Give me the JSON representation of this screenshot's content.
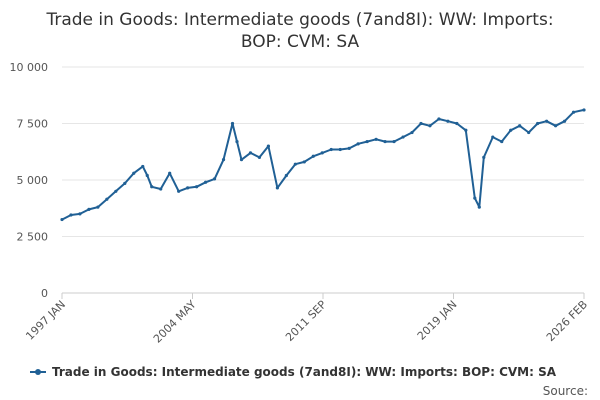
{
  "chart_data": {
    "type": "line",
    "title": [
      "Trade in Goods: Intermediate goods (7and8I): WW: Imports:",
      "BOP: CVM: SA"
    ],
    "x_ticks": [
      "1997 JAN",
      "2004 MAY",
      "2011 SEP",
      "2019 JAN",
      "2026 FEB"
    ],
    "y_ticks": [
      "0",
      "2 500",
      "5 000",
      "7 500",
      "10 000"
    ],
    "ylim": [
      0,
      10000
    ],
    "xlim": [
      "1997-01",
      "2026-02"
    ],
    "grid": true,
    "legend_position": "bottom",
    "series": [
      {
        "name": "Trade in Goods: Intermediate goods (7and8I): WW: Imports: BOP: CVM: SA",
        "color": "#206095",
        "x": [
          "1997-01",
          "1997-07",
          "1998-01",
          "1998-07",
          "1999-01",
          "1999-07",
          "2000-01",
          "2000-07",
          "2001-01",
          "2001-07",
          "2001-10",
          "2002-01",
          "2002-07",
          "2003-01",
          "2003-07",
          "2004-01",
          "2004-07",
          "2005-01",
          "2005-07",
          "2006-01",
          "2006-07",
          "2006-10",
          "2007-01",
          "2007-07",
          "2008-01",
          "2008-07",
          "2009-01",
          "2009-07",
          "2010-01",
          "2010-07",
          "2011-01",
          "2011-07",
          "2012-01",
          "2012-07",
          "2013-01",
          "2013-07",
          "2014-01",
          "2014-07",
          "2015-01",
          "2015-07",
          "2016-01",
          "2016-07",
          "2017-01",
          "2017-07",
          "2018-01",
          "2018-07",
          "2019-01",
          "2019-07",
          "2020-01",
          "2020-04",
          "2020-07",
          "2021-01",
          "2021-07",
          "2022-01",
          "2022-07",
          "2023-01",
          "2023-07",
          "2024-01",
          "2024-07",
          "2025-01",
          "2025-07",
          "2026-02"
        ],
        "values": [
          3250,
          3450,
          3500,
          3700,
          3800,
          4150,
          4500,
          4850,
          5300,
          5600,
          5200,
          4700,
          4600,
          5300,
          4500,
          4650,
          4700,
          4900,
          5050,
          5900,
          7500,
          6700,
          5900,
          6200,
          6000,
          6500,
          4650,
          5200,
          5700,
          5800,
          6050,
          6200,
          6350,
          6350,
          6400,
          6600,
          6700,
          6800,
          6700,
          6700,
          6900,
          7100,
          7500,
          7400,
          7700,
          7600,
          7500,
          7200,
          4200,
          3800,
          6000,
          6900,
          6700,
          7200,
          7400,
          7100,
          7500,
          7600,
          7400,
          7600,
          8000,
          8100
        ]
      }
    ],
    "source_label": "Source:"
  }
}
